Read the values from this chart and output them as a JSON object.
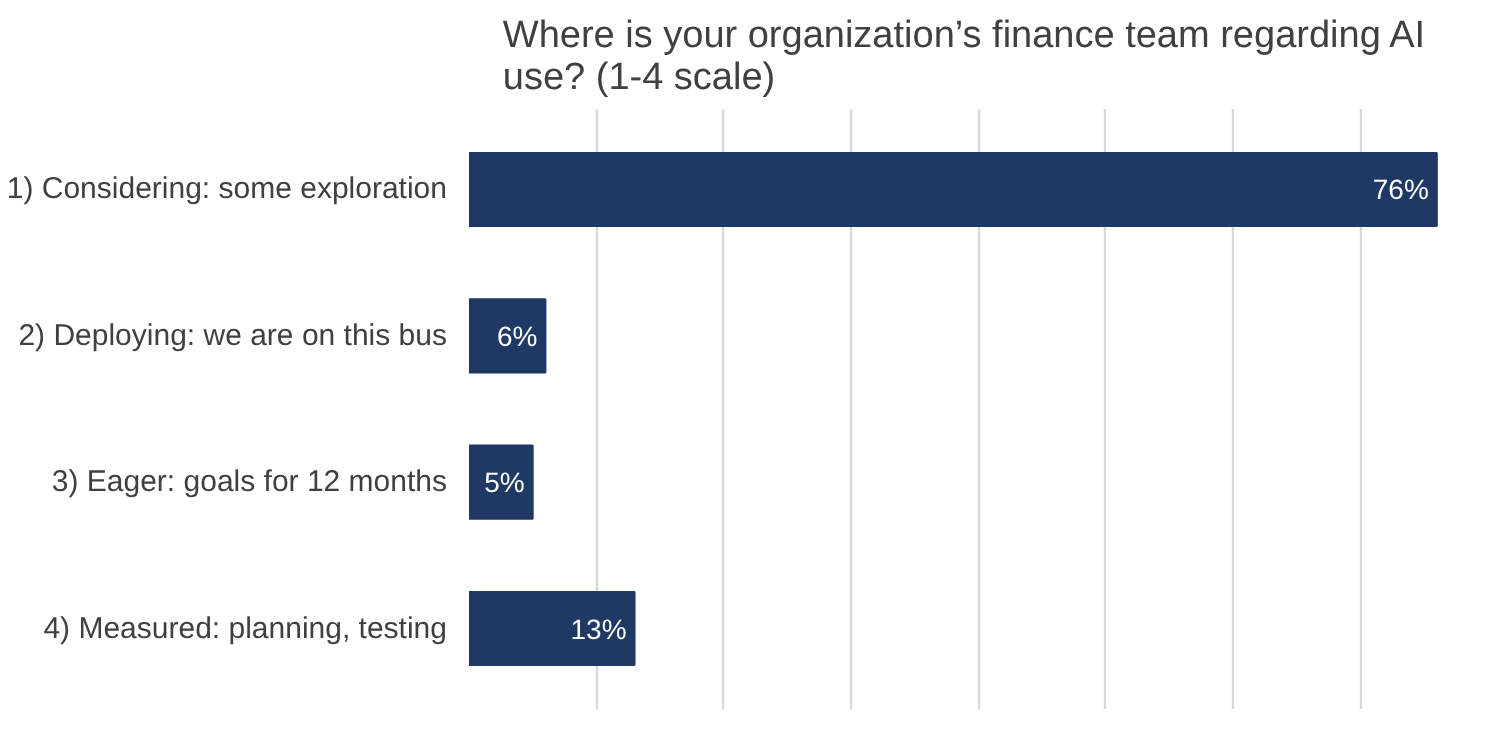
{
  "chart_data": {
    "type": "bar",
    "orientation": "horizontal",
    "title": "Where is your organization’s finance team regarding AI use? (1-4 scale)",
    "categories": [
      "1) Considering: some exploration",
      "2) Deploying: we are on this bus",
      "3) Eager: goals for 12 months",
      "4) Measured: planning, testing"
    ],
    "values": [
      76,
      6,
      5,
      13
    ],
    "color": "#1f3864",
    "data_labels": true,
    "value_labels": [
      "76%",
      "6%",
      "5%",
      "13%"
    ],
    "grid": "x",
    "tick_labels": "y"
  }
}
